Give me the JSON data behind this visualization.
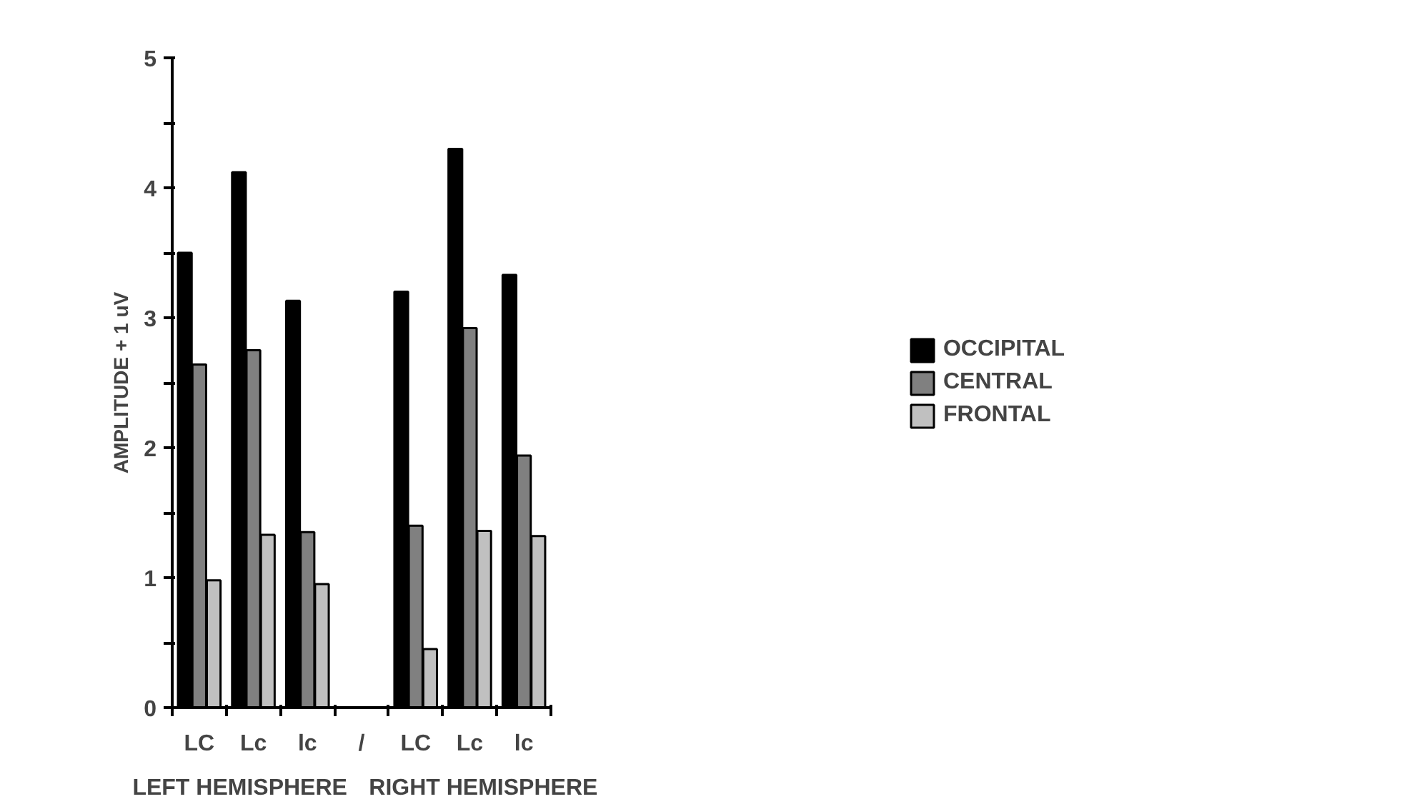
{
  "chart_data": {
    "type": "bar",
    "ylabel": "AMPLITUDE + 1 uV",
    "categories": [
      "LC",
      "Lc",
      "lc",
      "/",
      "LC",
      "Lc",
      "lc"
    ],
    "series": [
      {
        "name": "OCCIPITAL",
        "color": "#000000",
        "values": [
          3.5,
          4.12,
          3.13,
          null,
          3.2,
          4.3,
          3.33
        ]
      },
      {
        "name": "CENTRAL",
        "color": "#808080",
        "values": [
          2.64,
          2.75,
          1.35,
          null,
          1.4,
          2.92,
          1.94
        ]
      },
      {
        "name": "FRONTAL",
        "color": "#c0c0c0",
        "values": [
          0.98,
          1.33,
          0.95,
          null,
          0.45,
          1.36,
          1.32
        ]
      }
    ],
    "ylim": [
      0,
      5
    ],
    "yticks": [
      0,
      {
        "value": 0.5,
        "label": null
      },
      1,
      {
        "value": 1.5,
        "label": null
      },
      2,
      {
        "value": 2.5,
        "label": null
      },
      3,
      {
        "value": 3.5,
        "label": null
      },
      4,
      {
        "value": 4.5,
        "label": null
      },
      5
    ],
    "annotations": [
      "LEFT HEMISPHERE",
      "RIGHT HEMISPHERE"
    ],
    "legend": "right",
    "grid": false
  }
}
